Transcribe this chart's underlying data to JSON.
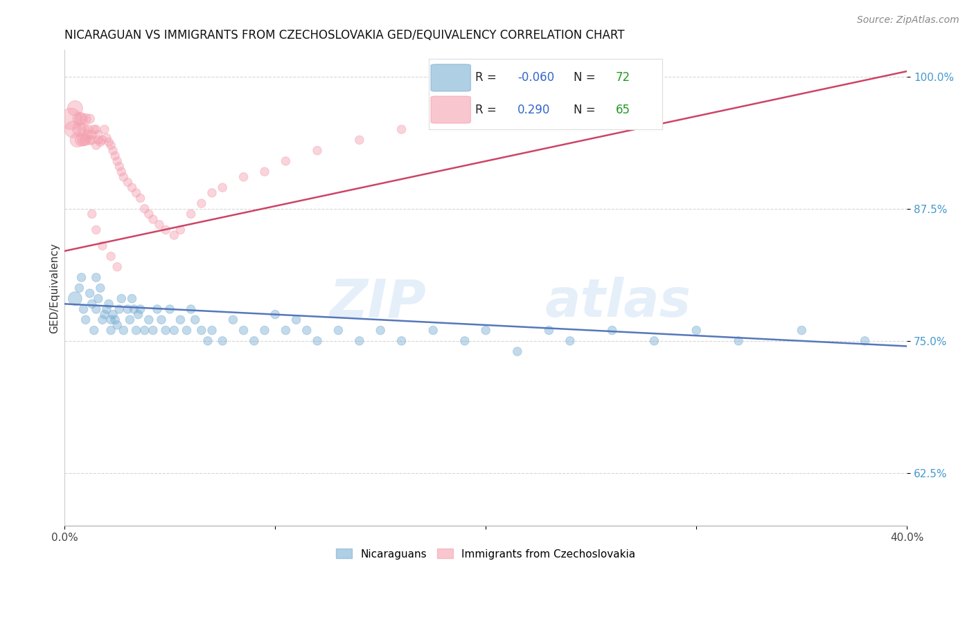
{
  "title": "NICARAGUAN VS IMMIGRANTS FROM CZECHOSLOVAKIA GED/EQUIVALENCY CORRELATION CHART",
  "source": "Source: ZipAtlas.com",
  "ylabel": "GED/Equivalency",
  "xmin": 0.0,
  "xmax": 0.4,
  "ymin": 0.575,
  "ymax": 1.025,
  "blue_R": -0.06,
  "blue_N": 72,
  "pink_R": 0.29,
  "pink_N": 65,
  "blue_color": "#7bafd4",
  "pink_color": "#f4a0b0",
  "blue_line_color": "#5577bb",
  "pink_line_color": "#cc4466",
  "legend_R_color": "#3366cc",
  "legend_N_color": "#229922",
  "blue_line_x0": 0.0,
  "blue_line_x1": 0.4,
  "blue_line_y0": 0.785,
  "blue_line_y1": 0.745,
  "pink_line_x0": 0.0,
  "pink_line_x1": 0.4,
  "pink_line_y0": 0.835,
  "pink_line_y1": 1.005,
  "blue_scatter_x": [
    0.005,
    0.007,
    0.008,
    0.009,
    0.01,
    0.012,
    0.013,
    0.014,
    0.015,
    0.015,
    0.016,
    0.017,
    0.018,
    0.019,
    0.02,
    0.021,
    0.022,
    0.022,
    0.023,
    0.024,
    0.025,
    0.026,
    0.027,
    0.028,
    0.03,
    0.031,
    0.032,
    0.033,
    0.034,
    0.035,
    0.036,
    0.038,
    0.04,
    0.042,
    0.044,
    0.046,
    0.048,
    0.05,
    0.052,
    0.055,
    0.058,
    0.06,
    0.062,
    0.065,
    0.068,
    0.07,
    0.075,
    0.08,
    0.085,
    0.09,
    0.095,
    0.1,
    0.105,
    0.11,
    0.115,
    0.12,
    0.13,
    0.14,
    0.15,
    0.16,
    0.175,
    0.19,
    0.2,
    0.215,
    0.23,
    0.24,
    0.26,
    0.28,
    0.3,
    0.32,
    0.35,
    0.38
  ],
  "blue_scatter_y": [
    0.79,
    0.8,
    0.81,
    0.78,
    0.77,
    0.795,
    0.785,
    0.76,
    0.81,
    0.78,
    0.79,
    0.8,
    0.77,
    0.775,
    0.78,
    0.785,
    0.77,
    0.76,
    0.775,
    0.77,
    0.765,
    0.78,
    0.79,
    0.76,
    0.78,
    0.77,
    0.79,
    0.78,
    0.76,
    0.775,
    0.78,
    0.76,
    0.77,
    0.76,
    0.78,
    0.77,
    0.76,
    0.78,
    0.76,
    0.77,
    0.76,
    0.78,
    0.77,
    0.76,
    0.75,
    0.76,
    0.75,
    0.77,
    0.76,
    0.75,
    0.76,
    0.775,
    0.76,
    0.77,
    0.76,
    0.75,
    0.76,
    0.75,
    0.76,
    0.75,
    0.76,
    0.75,
    0.76,
    0.74,
    0.76,
    0.75,
    0.76,
    0.75,
    0.76,
    0.75,
    0.76,
    0.75
  ],
  "blue_scatter_sizes": [
    200,
    80,
    80,
    80,
    80,
    80,
    80,
    80,
    80,
    80,
    80,
    80,
    80,
    80,
    80,
    80,
    80,
    80,
    80,
    80,
    80,
    80,
    80,
    80,
    80,
    80,
    80,
    80,
    80,
    80,
    80,
    80,
    80,
    80,
    80,
    80,
    80,
    80,
    80,
    80,
    80,
    80,
    80,
    80,
    80,
    80,
    80,
    80,
    80,
    80,
    80,
    80,
    80,
    80,
    80,
    80,
    80,
    80,
    80,
    80,
    80,
    80,
    80,
    80,
    80,
    80,
    80,
    80,
    80,
    80,
    80,
    80
  ],
  "pink_scatter_x": [
    0.003,
    0.004,
    0.005,
    0.006,
    0.007,
    0.007,
    0.008,
    0.008,
    0.009,
    0.009,
    0.01,
    0.01,
    0.011,
    0.011,
    0.012,
    0.012,
    0.013,
    0.013,
    0.014,
    0.015,
    0.015,
    0.016,
    0.016,
    0.017,
    0.018,
    0.019,
    0.02,
    0.021,
    0.022,
    0.023,
    0.024,
    0.025,
    0.026,
    0.027,
    0.028,
    0.03,
    0.032,
    0.034,
    0.036,
    0.038,
    0.04,
    0.042,
    0.045,
    0.048,
    0.052,
    0.055,
    0.06,
    0.065,
    0.07,
    0.075,
    0.085,
    0.095,
    0.105,
    0.12,
    0.14,
    0.16,
    0.185,
    0.2,
    0.23,
    0.26,
    0.013,
    0.015,
    0.018,
    0.022,
    0.025
  ],
  "pink_scatter_y": [
    0.96,
    0.95,
    0.97,
    0.94,
    0.95,
    0.96,
    0.94,
    0.96,
    0.94,
    0.95,
    0.94,
    0.96,
    0.945,
    0.95,
    0.94,
    0.96,
    0.945,
    0.94,
    0.95,
    0.935,
    0.95,
    0.94,
    0.945,
    0.938,
    0.94,
    0.95,
    0.942,
    0.938,
    0.935,
    0.93,
    0.925,
    0.92,
    0.915,
    0.91,
    0.905,
    0.9,
    0.895,
    0.89,
    0.885,
    0.875,
    0.87,
    0.865,
    0.86,
    0.855,
    0.85,
    0.855,
    0.87,
    0.88,
    0.89,
    0.895,
    0.905,
    0.91,
    0.92,
    0.93,
    0.94,
    0.95,
    0.96,
    0.97,
    0.975,
    0.99,
    0.87,
    0.855,
    0.84,
    0.83,
    0.82
  ],
  "pink_scatter_sizes": [
    500,
    300,
    250,
    220,
    200,
    180,
    170,
    160,
    150,
    140,
    130,
    120,
    110,
    105,
    100,
    95,
    90,
    88,
    85,
    82,
    80,
    80,
    80,
    80,
    80,
    80,
    80,
    80,
    80,
    80,
    80,
    80,
    80,
    80,
    80,
    80,
    80,
    80,
    80,
    80,
    80,
    80,
    80,
    80,
    80,
    80,
    80,
    80,
    80,
    80,
    80,
    80,
    80,
    80,
    80,
    80,
    80,
    80,
    80,
    80,
    80,
    80,
    80,
    80,
    80
  ]
}
